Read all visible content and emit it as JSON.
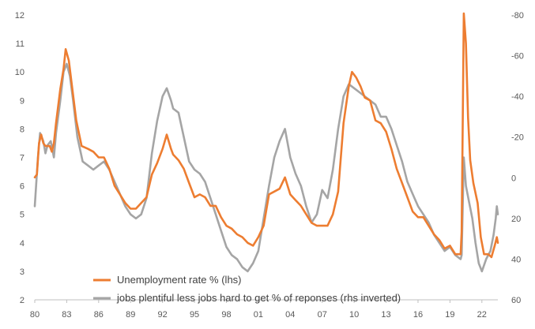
{
  "chart_data": {
    "type": "line",
    "title": "",
    "xlabel": "",
    "ylabel": "",
    "x_ticks": [
      "80",
      "83",
      "86",
      "89",
      "92",
      "95",
      "98",
      "01",
      "04",
      "07",
      "10",
      "13",
      "16",
      "19",
      "22"
    ],
    "x_range": [
      1980,
      2023.5
    ],
    "y_left": {
      "range": [
        2,
        12
      ],
      "ticks": [
        2,
        3,
        4,
        5,
        6,
        7,
        8,
        9,
        10,
        11,
        12
      ]
    },
    "y_right": {
      "range": [
        60,
        -80
      ],
      "inverted": true,
      "ticks": [
        60,
        40,
        20,
        0,
        -20,
        -40,
        -60,
        -80
      ]
    },
    "grid": false,
    "legend_position": "bottom-center",
    "series": [
      {
        "name": "Unemployment rate % (lhs)",
        "axis": "left",
        "color": "#ED7D31",
        "points": [
          [
            1980.0,
            6.3
          ],
          [
            1980.2,
            6.4
          ],
          [
            1980.4,
            7.5
          ],
          [
            1980.6,
            7.8
          ],
          [
            1980.8,
            7.5
          ],
          [
            1981.0,
            7.4
          ],
          [
            1981.4,
            7.4
          ],
          [
            1981.6,
            7.2
          ],
          [
            1981.8,
            7.5
          ],
          [
            1982.0,
            8.2
          ],
          [
            1982.4,
            9.4
          ],
          [
            1982.7,
            10.1
          ],
          [
            1982.9,
            10.8
          ],
          [
            1983.2,
            10.4
          ],
          [
            1983.5,
            9.5
          ],
          [
            1983.9,
            8.3
          ],
          [
            1984.4,
            7.4
          ],
          [
            1985.0,
            7.3
          ],
          [
            1985.5,
            7.2
          ],
          [
            1986.0,
            7.0
          ],
          [
            1986.5,
            7.0
          ],
          [
            1987.0,
            6.6
          ],
          [
            1987.5,
            6.0
          ],
          [
            1988.0,
            5.7
          ],
          [
            1988.5,
            5.4
          ],
          [
            1989.0,
            5.2
          ],
          [
            1989.5,
            5.2
          ],
          [
            1990.0,
            5.4
          ],
          [
            1990.5,
            5.6
          ],
          [
            1991.0,
            6.4
          ],
          [
            1991.5,
            6.8
          ],
          [
            1992.0,
            7.3
          ],
          [
            1992.4,
            7.8
          ],
          [
            1992.8,
            7.3
          ],
          [
            1993.0,
            7.1
          ],
          [
            1993.5,
            6.9
          ],
          [
            1994.0,
            6.6
          ],
          [
            1994.5,
            6.1
          ],
          [
            1995.0,
            5.6
          ],
          [
            1995.5,
            5.7
          ],
          [
            1996.0,
            5.6
          ],
          [
            1996.5,
            5.3
          ],
          [
            1997.0,
            5.3
          ],
          [
            1997.5,
            4.9
          ],
          [
            1998.0,
            4.6
          ],
          [
            1998.5,
            4.5
          ],
          [
            1999.0,
            4.3
          ],
          [
            1999.5,
            4.2
          ],
          [
            2000.0,
            4.0
          ],
          [
            2000.5,
            3.9
          ],
          [
            2001.0,
            4.2
          ],
          [
            2001.5,
            4.6
          ],
          [
            2002.0,
            5.7
          ],
          [
            2002.5,
            5.8
          ],
          [
            2003.0,
            5.9
          ],
          [
            2003.5,
            6.3
          ],
          [
            2004.0,
            5.7
          ],
          [
            2004.5,
            5.5
          ],
          [
            2005.0,
            5.3
          ],
          [
            2005.5,
            5.0
          ],
          [
            2006.0,
            4.7
          ],
          [
            2006.5,
            4.6
          ],
          [
            2007.0,
            4.6
          ],
          [
            2007.5,
            4.6
          ],
          [
            2008.0,
            5.0
          ],
          [
            2008.5,
            5.8
          ],
          [
            2009.0,
            8.2
          ],
          [
            2009.5,
            9.5
          ],
          [
            2009.8,
            10.0
          ],
          [
            2010.2,
            9.8
          ],
          [
            2010.6,
            9.5
          ],
          [
            2011.0,
            9.1
          ],
          [
            2011.5,
            9.0
          ],
          [
            2012.0,
            8.3
          ],
          [
            2012.5,
            8.2
          ],
          [
            2013.0,
            7.9
          ],
          [
            2013.5,
            7.3
          ],
          [
            2014.0,
            6.6
          ],
          [
            2014.5,
            6.1
          ],
          [
            2015.0,
            5.6
          ],
          [
            2015.5,
            5.1
          ],
          [
            2016.0,
            4.9
          ],
          [
            2016.5,
            4.9
          ],
          [
            2017.0,
            4.6
          ],
          [
            2017.5,
            4.3
          ],
          [
            2018.0,
            4.1
          ],
          [
            2018.5,
            3.8
          ],
          [
            2019.0,
            3.9
          ],
          [
            2019.5,
            3.6
          ],
          [
            2020.0,
            3.6
          ],
          [
            2020.1,
            4.4
          ],
          [
            2020.3,
            14.7
          ],
          [
            2020.5,
            11.0
          ],
          [
            2020.7,
            8.4
          ],
          [
            2020.9,
            6.9
          ],
          [
            2021.2,
            6.1
          ],
          [
            2021.6,
            5.4
          ],
          [
            2021.9,
            4.2
          ],
          [
            2022.2,
            3.6
          ],
          [
            2022.6,
            3.6
          ],
          [
            2022.9,
            3.5
          ],
          [
            2023.2,
            3.9
          ],
          [
            2023.4,
            4.2
          ],
          [
            2023.5,
            4.0
          ]
        ]
      },
      {
        "name": "jobs plentiful less jobs hard to get % of reponses (rhs inverted)",
        "axis": "right",
        "color": "#A5A5A5",
        "points": [
          [
            1980.0,
            14
          ],
          [
            1980.3,
            -10
          ],
          [
            1980.5,
            -22
          ],
          [
            1980.8,
            -18
          ],
          [
            1981.0,
            -12
          ],
          [
            1981.2,
            -16
          ],
          [
            1981.5,
            -18
          ],
          [
            1981.8,
            -10
          ],
          [
            1982.0,
            -22
          ],
          [
            1982.4,
            -38
          ],
          [
            1982.7,
            -52
          ],
          [
            1983.0,
            -56
          ],
          [
            1983.3,
            -50
          ],
          [
            1983.6,
            -38
          ],
          [
            1984.0,
            -20
          ],
          [
            1984.5,
            -8
          ],
          [
            1985.0,
            -6
          ],
          [
            1985.5,
            -4
          ],
          [
            1986.0,
            -6
          ],
          [
            1986.5,
            -8
          ],
          [
            1987.0,
            -4
          ],
          [
            1987.5,
            2
          ],
          [
            1988.0,
            8
          ],
          [
            1988.5,
            14
          ],
          [
            1989.0,
            18
          ],
          [
            1989.5,
            20
          ],
          [
            1990.0,
            18
          ],
          [
            1990.5,
            10
          ],
          [
            1991.0,
            -12
          ],
          [
            1991.5,
            -28
          ],
          [
            1992.0,
            -40
          ],
          [
            1992.4,
            -44
          ],
          [
            1992.8,
            -38
          ],
          [
            1993.0,
            -34
          ],
          [
            1993.5,
            -32
          ],
          [
            1994.0,
            -20
          ],
          [
            1994.5,
            -8
          ],
          [
            1995.0,
            -4
          ],
          [
            1995.5,
            -2
          ],
          [
            1996.0,
            2
          ],
          [
            1996.5,
            10
          ],
          [
            1997.0,
            18
          ],
          [
            1997.5,
            26
          ],
          [
            1998.0,
            34
          ],
          [
            1998.5,
            38
          ],
          [
            1999.0,
            40
          ],
          [
            1999.5,
            44
          ],
          [
            2000.0,
            46
          ],
          [
            2000.5,
            42
          ],
          [
            2001.0,
            36
          ],
          [
            2001.5,
            20
          ],
          [
            2002.0,
            4
          ],
          [
            2002.5,
            -10
          ],
          [
            2003.0,
            -18
          ],
          [
            2003.5,
            -24
          ],
          [
            2004.0,
            -10
          ],
          [
            2004.5,
            -2
          ],
          [
            2005.0,
            4
          ],
          [
            2005.5,
            14
          ],
          [
            2006.0,
            22
          ],
          [
            2006.5,
            18
          ],
          [
            2007.0,
            6
          ],
          [
            2007.5,
            10
          ],
          [
            2008.0,
            -4
          ],
          [
            2008.5,
            -24
          ],
          [
            2009.0,
            -40
          ],
          [
            2009.5,
            -46
          ],
          [
            2010.0,
            -44
          ],
          [
            2010.5,
            -42
          ],
          [
            2011.0,
            -40
          ],
          [
            2011.5,
            -38
          ],
          [
            2012.0,
            -36
          ],
          [
            2012.5,
            -30
          ],
          [
            2013.0,
            -30
          ],
          [
            2013.5,
            -24
          ],
          [
            2014.0,
            -16
          ],
          [
            2014.5,
            -8
          ],
          [
            2015.0,
            2
          ],
          [
            2015.5,
            8
          ],
          [
            2016.0,
            14
          ],
          [
            2016.5,
            18
          ],
          [
            2017.0,
            22
          ],
          [
            2017.5,
            28
          ],
          [
            2018.0,
            32
          ],
          [
            2018.5,
            36
          ],
          [
            2019.0,
            34
          ],
          [
            2019.5,
            38
          ],
          [
            2020.0,
            40
          ],
          [
            2020.1,
            38
          ],
          [
            2020.3,
            -10
          ],
          [
            2020.5,
            4
          ],
          [
            2020.8,
            12
          ],
          [
            2021.1,
            20
          ],
          [
            2021.4,
            32
          ],
          [
            2021.7,
            42
          ],
          [
            2022.0,
            46
          ],
          [
            2022.4,
            40
          ],
          [
            2022.8,
            36
          ],
          [
            2023.1,
            28
          ],
          [
            2023.3,
            20
          ],
          [
            2023.4,
            14
          ],
          [
            2023.5,
            18
          ]
        ]
      }
    ]
  }
}
